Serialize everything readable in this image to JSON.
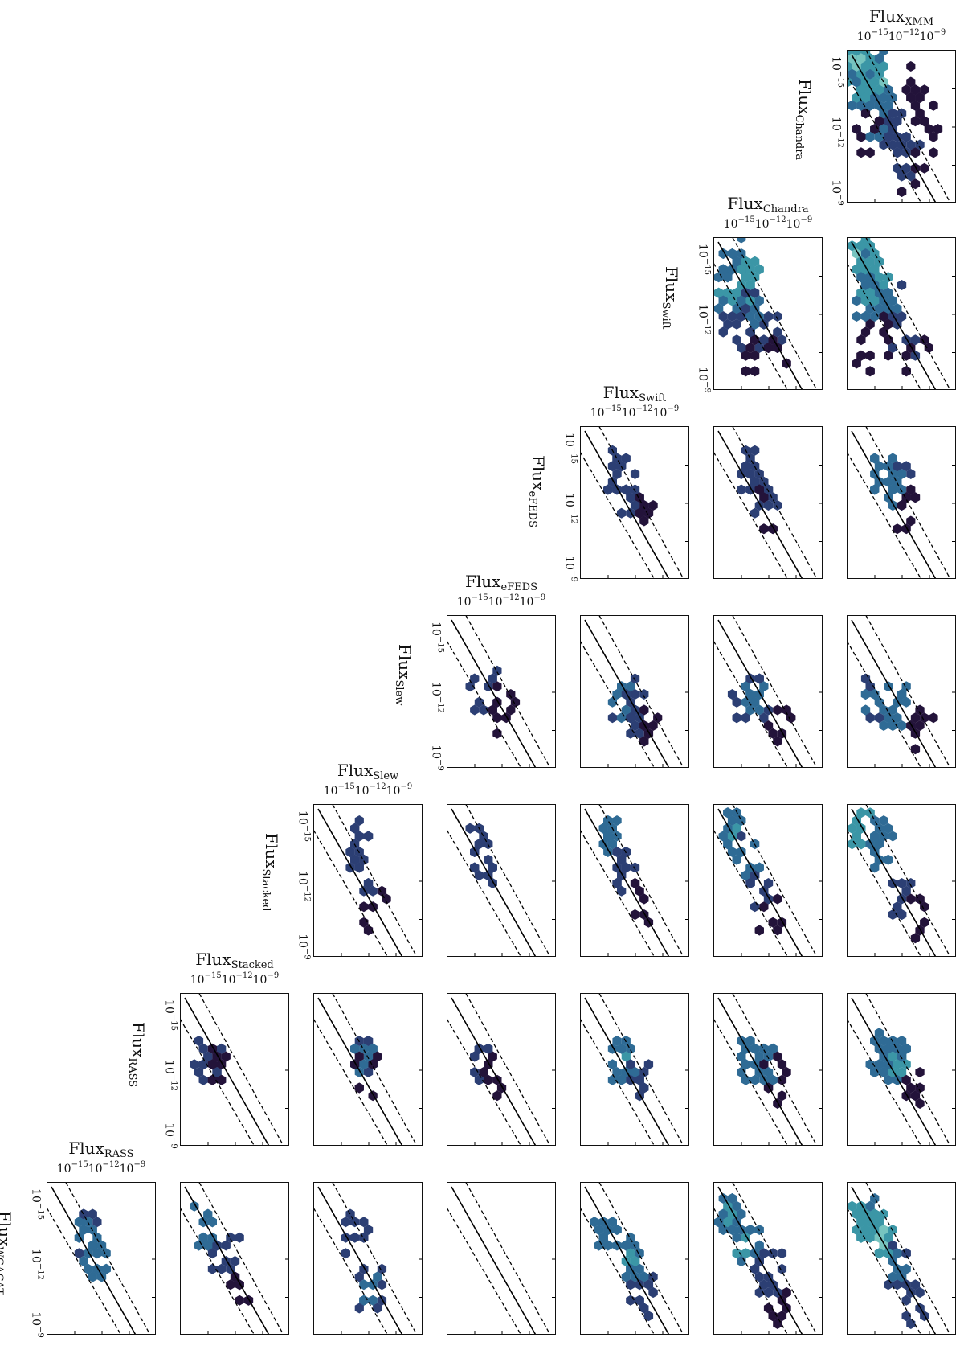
{
  "chart_data": {
    "type": "hexbin-matrix",
    "variables": [
      "XMM",
      "Chandra",
      "Swift",
      "eFEDS",
      "Slew",
      "Stacked",
      "RASS",
      "WGACAT"
    ],
    "axis_label_prefix": "Flux",
    "scale": "log",
    "tick_labels": [
      "10−15",
      "10−12",
      "10−9"
    ],
    "tick_exponents": [
      -15,
      -12,
      -9
    ],
    "lines": [
      "y = x (solid)",
      "y = 10x and y = x/10 (dashed)"
    ],
    "colormap": [
      "#23133a",
      "#2c3f74",
      "#2f6b95",
      "#3b96a6",
      "#77c4bf",
      "#dcefe9"
    ],
    "panels": [
      {
        "row": "Chandra",
        "col": "XMM",
        "cells": [
          [
            0.1,
            0.1,
            0.8
          ],
          [
            0.22,
            0.2,
            0.9
          ],
          [
            0.15,
            0.3,
            0.6
          ],
          [
            0.3,
            0.45,
            0.5
          ],
          [
            0.25,
            0.15,
            0.7
          ],
          [
            0.45,
            0.55,
            0.3
          ],
          [
            0.55,
            0.7,
            0.2
          ],
          [
            0.6,
            0.25,
            0.1
          ],
          [
            0.7,
            0.35,
            0.05
          ],
          [
            0.75,
            0.5,
            0.05
          ],
          [
            0.2,
            0.55,
            0.05
          ],
          [
            0.6,
            0.8,
            0.05
          ]
        ]
      },
      {
        "row": "Swift",
        "col": "Chandra",
        "cells": [
          [
            0.2,
            0.15,
            0.5
          ],
          [
            0.15,
            0.35,
            0.6
          ],
          [
            0.3,
            0.3,
            0.7
          ],
          [
            0.35,
            0.5,
            0.4
          ],
          [
            0.2,
            0.6,
            0.2
          ],
          [
            0.5,
            0.6,
            0.2
          ],
          [
            0.55,
            0.8,
            0.05
          ],
          [
            0.3,
            0.8,
            0.05
          ]
        ]
      },
      {
        "row": "Swift",
        "col": "XMM",
        "cells": [
          [
            0.15,
            0.12,
            0.8
          ],
          [
            0.25,
            0.25,
            0.7
          ],
          [
            0.2,
            0.4,
            0.6
          ],
          [
            0.4,
            0.45,
            0.4
          ],
          [
            0.5,
            0.6,
            0.2
          ],
          [
            0.3,
            0.65,
            0.1
          ],
          [
            0.2,
            0.75,
            0.05
          ],
          [
            0.6,
            0.75,
            0.05
          ]
        ]
      },
      {
        "row": "eFEDS",
        "col": "Swift",
        "cells": [
          [
            0.35,
            0.3,
            0.3
          ],
          [
            0.45,
            0.45,
            0.3
          ],
          [
            0.55,
            0.55,
            0.1
          ]
        ]
      },
      {
        "row": "eFEDS",
        "col": "Chandra",
        "cells": [
          [
            0.35,
            0.3,
            0.3
          ],
          [
            0.45,
            0.4,
            0.3
          ],
          [
            0.5,
            0.55,
            0.1
          ]
        ]
      },
      {
        "row": "eFEDS",
        "col": "XMM",
        "cells": [
          [
            0.35,
            0.3,
            0.5
          ],
          [
            0.45,
            0.4,
            0.4
          ],
          [
            0.55,
            0.55,
            0.1
          ]
        ]
      },
      {
        "row": "Slew",
        "col": "eFEDS",
        "cells": [
          [
            0.35,
            0.5,
            0.2
          ],
          [
            0.5,
            0.6,
            0.1
          ]
        ]
      },
      {
        "row": "Slew",
        "col": "Swift",
        "cells": [
          [
            0.4,
            0.55,
            0.4
          ],
          [
            0.5,
            0.62,
            0.3
          ],
          [
            0.6,
            0.7,
            0.1
          ]
        ]
      },
      {
        "row": "Slew",
        "col": "Chandra",
        "cells": [
          [
            0.25,
            0.55,
            0.3
          ],
          [
            0.4,
            0.55,
            0.4
          ],
          [
            0.6,
            0.7,
            0.1
          ]
        ]
      },
      {
        "row": "Slew",
        "col": "XMM",
        "cells": [
          [
            0.25,
            0.55,
            0.4
          ],
          [
            0.45,
            0.58,
            0.5
          ],
          [
            0.65,
            0.75,
            0.1
          ]
        ]
      },
      {
        "row": "Stacked",
        "col": "Slew",
        "cells": [
          [
            0.4,
            0.25,
            0.2
          ],
          [
            0.45,
            0.45,
            0.2
          ],
          [
            0.55,
            0.7,
            0.05
          ]
        ]
      },
      {
        "row": "Stacked",
        "col": "eFEDS",
        "cells": [
          [
            0.3,
            0.25,
            0.3
          ],
          [
            0.35,
            0.35,
            0.2
          ]
        ]
      },
      {
        "row": "Stacked",
        "col": "Swift",
        "cells": [
          [
            0.3,
            0.2,
            0.5
          ],
          [
            0.4,
            0.4,
            0.3
          ],
          [
            0.55,
            0.65,
            0.1
          ]
        ]
      },
      {
        "row": "Stacked",
        "col": "Chandra",
        "cells": [
          [
            0.2,
            0.15,
            0.6
          ],
          [
            0.3,
            0.35,
            0.4
          ],
          [
            0.45,
            0.55,
            0.2
          ],
          [
            0.5,
            0.7,
            0.05
          ]
        ]
      },
      {
        "row": "Stacked",
        "col": "XMM",
        "cells": [
          [
            0.15,
            0.15,
            0.7
          ],
          [
            0.3,
            0.25,
            0.5
          ],
          [
            0.5,
            0.6,
            0.2
          ],
          [
            0.6,
            0.75,
            0.05
          ]
        ]
      },
      {
        "row": "RASS",
        "col": "Stacked",
        "cells": [
          [
            0.25,
            0.45,
            0.3
          ],
          [
            0.35,
            0.45,
            0.1
          ]
        ]
      },
      {
        "row": "RASS",
        "col": "Slew",
        "cells": [
          [
            0.45,
            0.42,
            0.4
          ],
          [
            0.5,
            0.55,
            0.1
          ]
        ]
      },
      {
        "row": "RASS",
        "col": "eFEDS",
        "cells": [
          [
            0.3,
            0.45,
            0.3
          ],
          [
            0.4,
            0.55,
            0.1
          ]
        ]
      },
      {
        "row": "RASS",
        "col": "Swift",
        "cells": [
          [
            0.4,
            0.42,
            0.6
          ],
          [
            0.55,
            0.55,
            0.2
          ]
        ]
      },
      {
        "row": "RASS",
        "col": "Chandra",
        "cells": [
          [
            0.3,
            0.42,
            0.5
          ],
          [
            0.45,
            0.45,
            0.5
          ],
          [
            0.55,
            0.55,
            0.1
          ]
        ]
      },
      {
        "row": "RASS",
        "col": "XMM",
        "cells": [
          [
            0.3,
            0.4,
            0.5
          ],
          [
            0.45,
            0.45,
            0.6
          ],
          [
            0.6,
            0.6,
            0.1
          ]
        ]
      },
      {
        "row": "WGACAT",
        "col": "RASS",
        "cells": [
          [
            0.35,
            0.35,
            0.4
          ],
          [
            0.45,
            0.5,
            0.5
          ]
        ]
      },
      {
        "row": "WGACAT",
        "col": "Stacked",
        "cells": [
          [
            0.25,
            0.3,
            0.5
          ],
          [
            0.4,
            0.45,
            0.2
          ],
          [
            0.55,
            0.65,
            0.05
          ]
        ]
      },
      {
        "row": "WGACAT",
        "col": "Slew",
        "cells": [
          [
            0.4,
            0.35,
            0.2
          ],
          [
            0.5,
            0.7,
            0.4
          ]
        ]
      },
      {
        "row": "WGACAT",
        "col": "eFEDS",
        "cells": []
      },
      {
        "row": "WGACAT",
        "col": "Swift",
        "cells": [
          [
            0.25,
            0.3,
            0.5
          ],
          [
            0.45,
            0.5,
            0.6
          ],
          [
            0.55,
            0.75,
            0.3
          ]
        ]
      },
      {
        "row": "WGACAT",
        "col": "Chandra",
        "cells": [
          [
            0.15,
            0.2,
            0.6
          ],
          [
            0.3,
            0.4,
            0.6
          ],
          [
            0.5,
            0.6,
            0.3
          ],
          [
            0.6,
            0.8,
            0.1
          ]
        ]
      },
      {
        "row": "WGACAT",
        "col": "XMM",
        "cells": [
          [
            0.15,
            0.25,
            0.7
          ],
          [
            0.3,
            0.35,
            0.8
          ],
          [
            0.45,
            0.55,
            0.4
          ],
          [
            0.6,
            0.8,
            0.2
          ]
        ]
      }
    ]
  }
}
